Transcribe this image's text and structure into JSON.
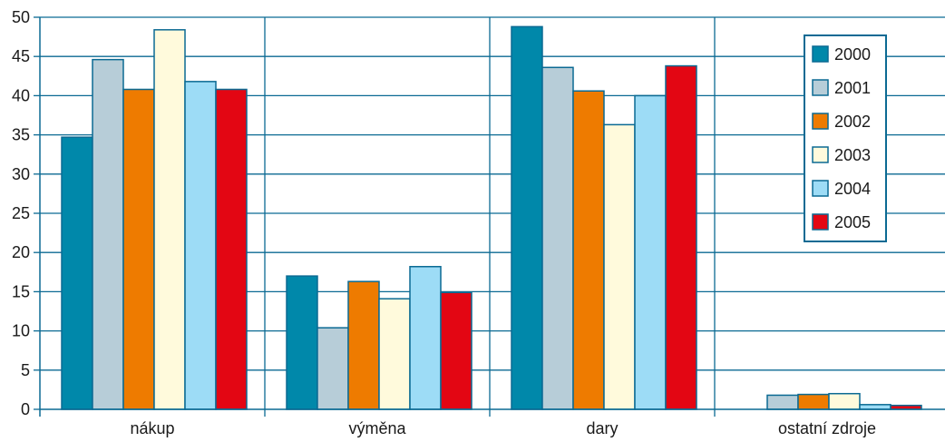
{
  "chart_data": {
    "type": "bar",
    "categories": [
      "nákup",
      "výměna",
      "dary",
      "ostatní zdroje"
    ],
    "series": [
      {
        "name": "2000",
        "color": "#0088aa",
        "values": [
          34.7,
          17.0,
          48.8,
          0.0
        ]
      },
      {
        "name": "2001",
        "color": "#b7cdd8",
        "values": [
          44.6,
          10.4,
          43.6,
          1.8
        ]
      },
      {
        "name": "2002",
        "color": "#ee7b00",
        "values": [
          40.8,
          16.3,
          40.6,
          1.9
        ]
      },
      {
        "name": "2003",
        "color": "#fffadc",
        "values": [
          48.4,
          14.1,
          36.3,
          2.0
        ]
      },
      {
        "name": "2004",
        "color": "#9ddcf6",
        "values": [
          41.8,
          18.2,
          40.0,
          0.6
        ]
      },
      {
        "name": "2005",
        "color": "#e30613",
        "values": [
          40.8,
          14.9,
          43.8,
          0.5
        ]
      }
    ],
    "ylim": [
      0,
      50
    ],
    "yticks": [
      0,
      5,
      10,
      15,
      20,
      25,
      30,
      35,
      40,
      45,
      50
    ],
    "grid": true,
    "legend_position": "top-right",
    "axis_color": "#0b6a93",
    "bar_edge_color": "#0b6a93"
  }
}
